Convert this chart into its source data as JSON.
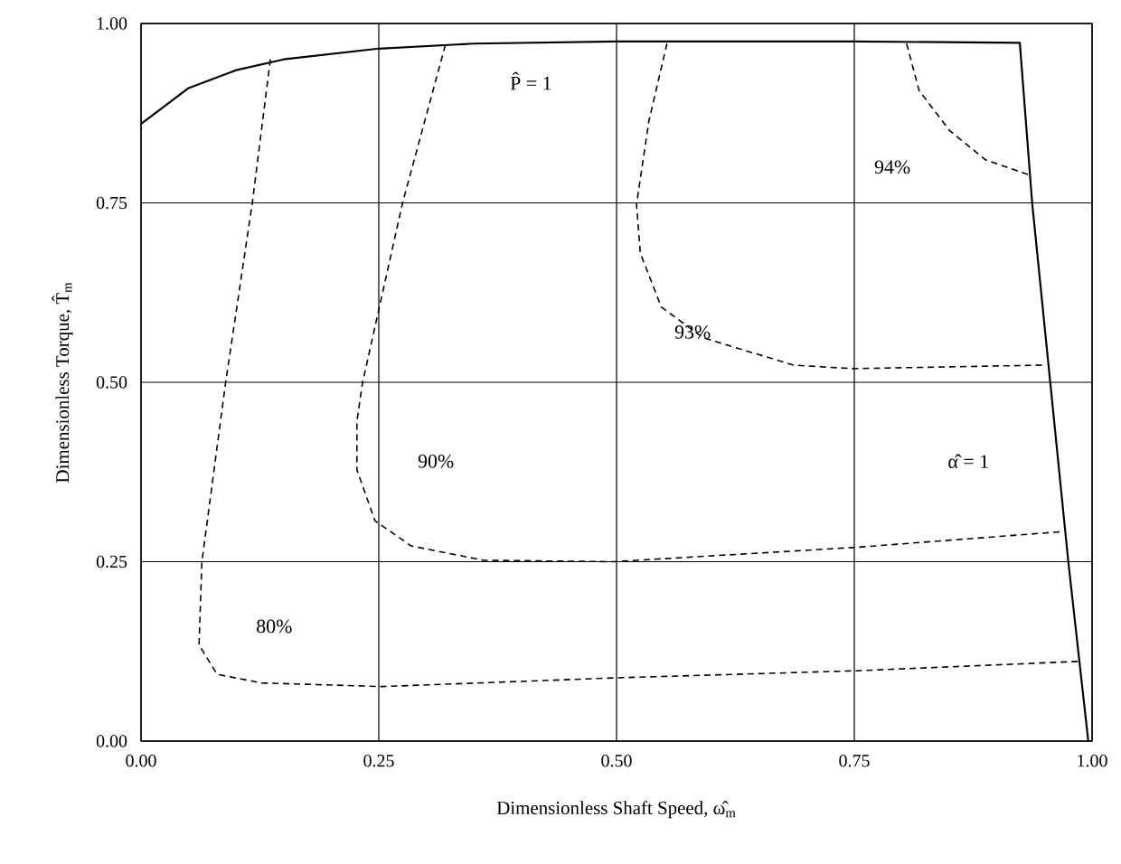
{
  "chart_data": {
    "type": "line",
    "xlabel": "Dimensionless Shaft Speed, ω̂$_{m}$",
    "ylabel": "Dimensionless Torque, T̂$_{m}$",
    "xlim": [
      0,
      1
    ],
    "ylim": [
      0,
      1
    ],
    "xticks": [
      {
        "value": 0,
        "label": "0.00"
      },
      {
        "value": 0.25,
        "label": "0.25"
      },
      {
        "value": 0.5,
        "label": "0.50"
      },
      {
        "value": 0.75,
        "label": "0.75"
      },
      {
        "value": 1,
        "label": "1.00"
      }
    ],
    "yticks": [
      {
        "value": 0,
        "label": "0.00"
      },
      {
        "value": 0.25,
        "label": "0.25"
      },
      {
        "value": 0.5,
        "label": "0.50"
      },
      {
        "value": 0.75,
        "label": "0.75"
      },
      {
        "value": 1,
        "label": "1.00"
      }
    ],
    "grid": true,
    "series": [
      {
        "color": "#000000",
        "line_style": "solid",
        "x": [
          0,
          0.05,
          0.1,
          0.15,
          0.25,
          0.35,
          0.5,
          0.75,
          0.924,
          0.937,
          0.956,
          0.975,
          0.996
        ],
        "values": [
          0.86,
          0.91,
          0.935,
          0.95,
          0.965,
          0.972,
          0.975,
          0.975,
          0.973,
          0.75,
          0.5,
          0.25,
          0
        ]
      },
      {
        "color": "#000000",
        "line_style": "dashed",
        "x": [
          0.136,
          0.117,
          0.089,
          0.064,
          0.061,
          0.08,
          0.127,
          0.254,
          0.496,
          0.752,
          0.985
        ],
        "values": [
          0.95,
          0.75,
          0.5,
          0.25,
          0.134,
          0.093,
          0.081,
          0.076,
          0.088,
          0.098,
          0.111
        ]
      },
      {
        "color": "#000000",
        "line_style": "dashed",
        "x": [
          0.32,
          0.275,
          0.233,
          0.227,
          0.227,
          0.246,
          0.284,
          0.36,
          0.496,
          0.752,
          0.97
        ],
        "values": [
          0.97,
          0.75,
          0.5,
          0.446,
          0.378,
          0.307,
          0.272,
          0.252,
          0.25,
          0.27,
          0.292
        ]
      },
      {
        "color": "#000000",
        "line_style": "dashed",
        "x": [
          0.553,
          0.534,
          0.521,
          0.525,
          0.547,
          0.591,
          0.686,
          0.748,
          0.951
        ],
        "values": [
          0.972,
          0.864,
          0.748,
          0.68,
          0.605,
          0.562,
          0.524,
          0.519,
          0.524
        ]
      },
      {
        "color": "#000000",
        "line_style": "dashed",
        "x": [
          0.805,
          0.818,
          0.85,
          0.888,
          0.936
        ],
        "values": [
          0.972,
          0.907,
          0.851,
          0.81,
          0.788
        ]
      }
    ],
    "annotations": [
      "P̂ = 1",
      "α̂ = 1",
      "80%",
      "90%",
      "93%",
      "94%"
    ]
  }
}
